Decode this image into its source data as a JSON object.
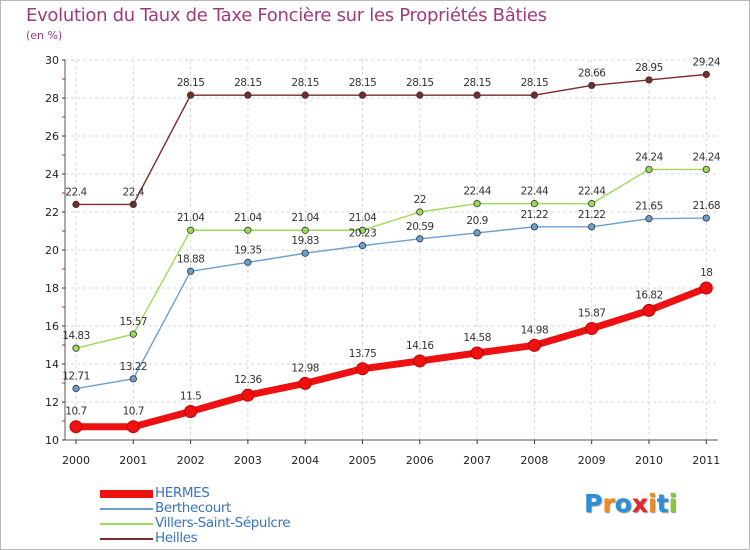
{
  "header": {
    "title": "Evolution du Taux de Taxe Foncière sur les Propriétés Bâties",
    "unit": "(en %)"
  },
  "logo": {
    "text": "Proxiti",
    "letters": [
      "P",
      "r",
      "o",
      "x",
      "i",
      "t",
      "i"
    ],
    "colors": [
      "#2b8fd8",
      "#f08a1c",
      "#2b8fd8",
      "#e3262b",
      "#f08a1c",
      "#2b8fd8",
      "#8cc63f"
    ]
  },
  "chart_data": {
    "type": "line",
    "title": "Evolution du Taux de Taxe Foncière sur les Propriétés Bâties",
    "ylabel": "(en %)",
    "xlabel": "",
    "x": [
      "2000",
      "2001",
      "2002",
      "2003",
      "2004",
      "2005",
      "2006",
      "2007",
      "2008",
      "2009",
      "2010",
      "2011"
    ],
    "ylim": [
      10,
      30
    ],
    "yticks": [
      "10",
      "12",
      "14",
      "16",
      "18",
      "20",
      "22",
      "24",
      "26",
      "28",
      "30"
    ],
    "grid": true,
    "legend_position": "bottom-left",
    "series": [
      {
        "name": "HERMES",
        "color": "#ee1111",
        "values": [
          10.7,
          10.7,
          11.5,
          12.36,
          12.98,
          13.75,
          14.16,
          14.58,
          14.98,
          15.87,
          16.82,
          18
        ],
        "labels": [
          "10.7",
          "10.7",
          "11.5",
          "12.36",
          "12.98",
          "13.75",
          "14.16",
          "14.58",
          "14.98",
          "15.87",
          "16.82",
          "18"
        ]
      },
      {
        "name": "Berthecourt",
        "color": "#6b9fd0",
        "values": [
          12.71,
          13.22,
          18.88,
          19.35,
          19.83,
          20.23,
          20.59,
          20.9,
          21.22,
          21.22,
          21.65,
          21.68
        ],
        "labels": [
          "12.71",
          "13.22",
          "18.88",
          "19.35",
          "19.83",
          "20.23",
          "20.59",
          "20.9",
          "21.22",
          "21.22",
          "21.65",
          "21.68"
        ]
      },
      {
        "name": "Villers-Saint-Sépulcre",
        "color": "#99dd55",
        "values": [
          14.83,
          15.57,
          21.04,
          21.04,
          21.04,
          21.04,
          22,
          22.44,
          22.44,
          22.44,
          24.24,
          24.24
        ],
        "labels": [
          "14.83",
          "15.57",
          "21.04",
          "21.04",
          "21.04",
          "21.04",
          "22",
          "22.44",
          "22.44",
          "22.44",
          "24.24",
          "24.24"
        ]
      },
      {
        "name": "Heilles",
        "color": "#7a2a2a",
        "values": [
          22.4,
          22.4,
          28.15,
          28.15,
          28.15,
          28.15,
          28.15,
          28.15,
          28.15,
          28.66,
          28.95,
          29.24
        ],
        "labels": [
          "22.4",
          "22.4",
          "28.15",
          "28.15",
          "28.15",
          "28.15",
          "28.15",
          "28.15",
          "28.15",
          "28.66",
          "28.95",
          "29.24"
        ]
      }
    ]
  }
}
